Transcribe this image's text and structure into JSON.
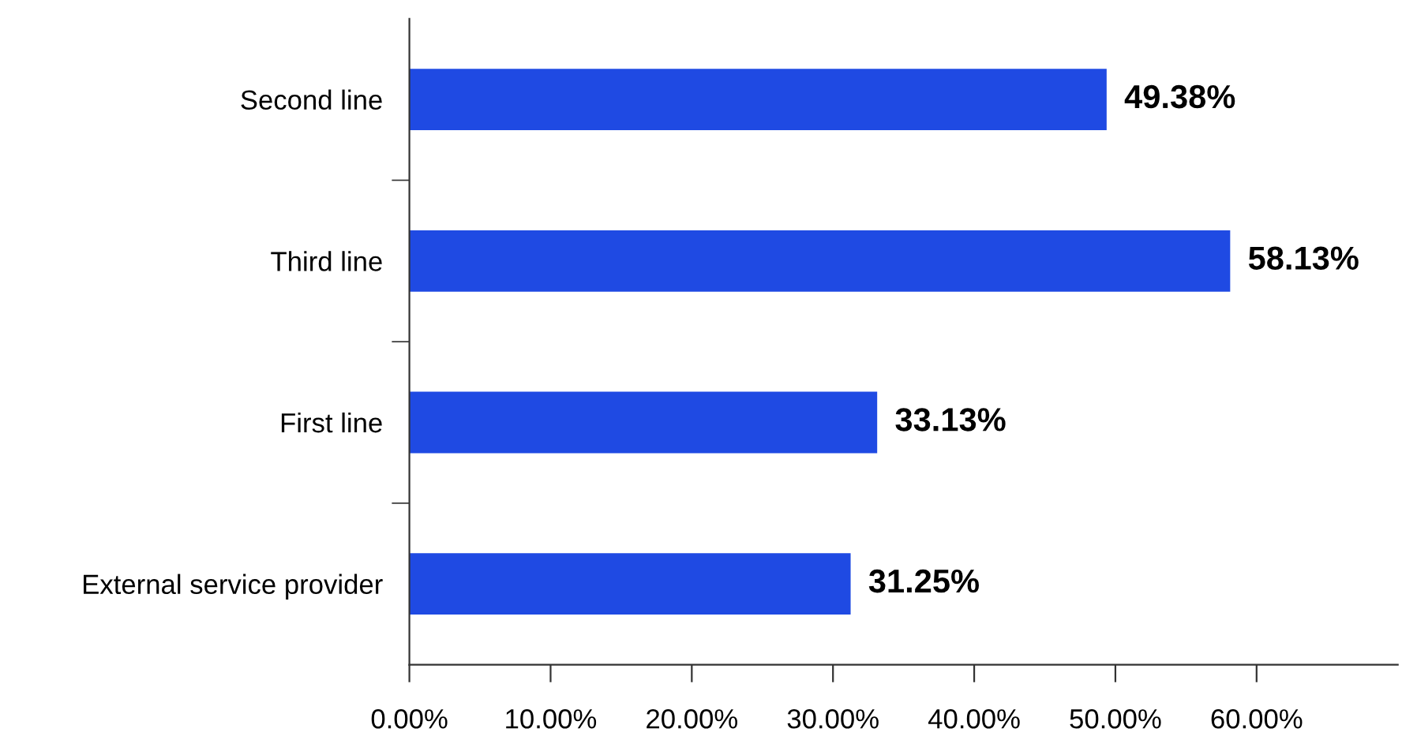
{
  "chart_data": {
    "type": "bar",
    "orientation": "horizontal",
    "categories": [
      "Second line",
      "Third line",
      "First line",
      "External service provider"
    ],
    "values": [
      49.38,
      58.13,
      33.13,
      31.25
    ],
    "value_labels": [
      "49.38%",
      "58.13%",
      "33.13%",
      "31.25%"
    ],
    "color": "#1f4ae3",
    "xlim": [
      0,
      70
    ],
    "xticks": [
      {
        "value": 0,
        "label": "0.00%"
      },
      {
        "value": 10,
        "label": "10.00%"
      },
      {
        "value": 20,
        "label": "20.00%"
      },
      {
        "value": 30,
        "label": "30.00%"
      },
      {
        "value": 40,
        "label": "40.00%"
      },
      {
        "value": 50,
        "label": "50.00%"
      },
      {
        "value": 60,
        "label": "60.00%"
      }
    ],
    "grid": false,
    "legend": false
  }
}
